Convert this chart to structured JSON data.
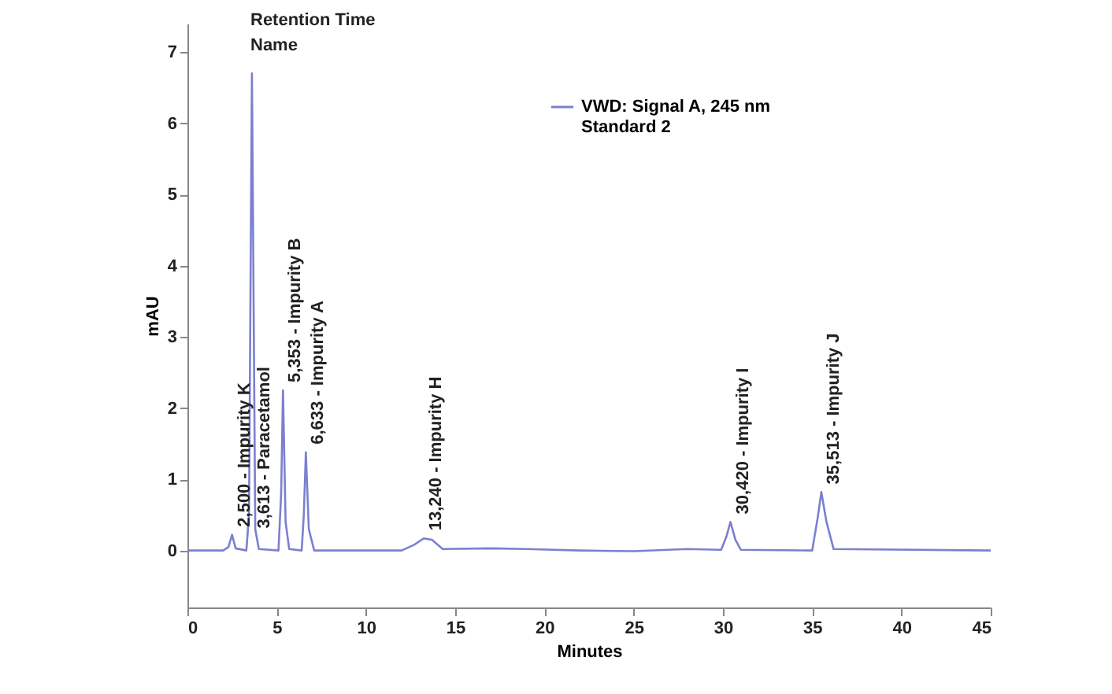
{
  "chart_data": {
    "type": "line",
    "xlabel": "Minutes",
    "ylabel": "mAU",
    "xlim": [
      0,
      45
    ],
    "ylim": [
      -0.8,
      7.4
    ],
    "xticks": [
      0,
      5,
      10,
      15,
      20,
      25,
      30,
      35,
      40,
      45
    ],
    "yticks": [
      0,
      1,
      2,
      3,
      4,
      5,
      6,
      7
    ],
    "grid": false,
    "legend": "top",
    "marker": "none",
    "series": [
      {
        "name": "VWD: Signal A, 245 nm\nStandard 2",
        "color": "#7b80cf",
        "x": [
          0,
          2.0,
          2.3,
          2.5,
          2.7,
          3.3,
          3.45,
          3.613,
          3.8,
          4.0,
          5.1,
          5.25,
          5.353,
          5.5,
          5.7,
          6.4,
          6.52,
          6.633,
          6.8,
          7.1,
          12.0,
          12.7,
          13.24,
          13.7,
          14.3,
          17,
          19,
          22,
          25,
          28,
          29.9,
          30.2,
          30.42,
          30.7,
          31.0,
          35.0,
          35.3,
          35.513,
          35.8,
          36.2,
          45
        ],
        "values": [
          0,
          0,
          0.05,
          0.22,
          0.03,
          0,
          0.5,
          6.7,
          0.3,
          0.02,
          0,
          0.8,
          2.25,
          0.4,
          0.02,
          0,
          0.5,
          1.38,
          0.3,
          0,
          0,
          0.08,
          0.17,
          0.15,
          0.02,
          0.03,
          0.02,
          0,
          -0.01,
          0.02,
          0.01,
          0.2,
          0.4,
          0.15,
          0.01,
          0,
          0.45,
          0.82,
          0.4,
          0.02,
          0
        ]
      }
    ],
    "annotations": [
      "Retention Time",
      "Name",
      {
        "text": "2,500 - Impurity K",
        "x": 2.5,
        "y": 0.22
      },
      {
        "text": "3,613 - Paracetamol",
        "x": 3.613,
        "y": 0.2
      },
      {
        "text": "5,353 - Impurity B",
        "x": 5.353,
        "y": 2.25
      },
      {
        "text": "6,633 - Impurity A",
        "x": 6.633,
        "y": 1.38
      },
      {
        "text": "13,240 - Impurity H",
        "x": 13.24,
        "y": 0.17
      },
      {
        "text": "30,420 - Impurity I",
        "x": 30.42,
        "y": 0.4
      },
      {
        "text": "35,513 - Impurity J",
        "x": 35.513,
        "y": 0.82
      }
    ]
  }
}
